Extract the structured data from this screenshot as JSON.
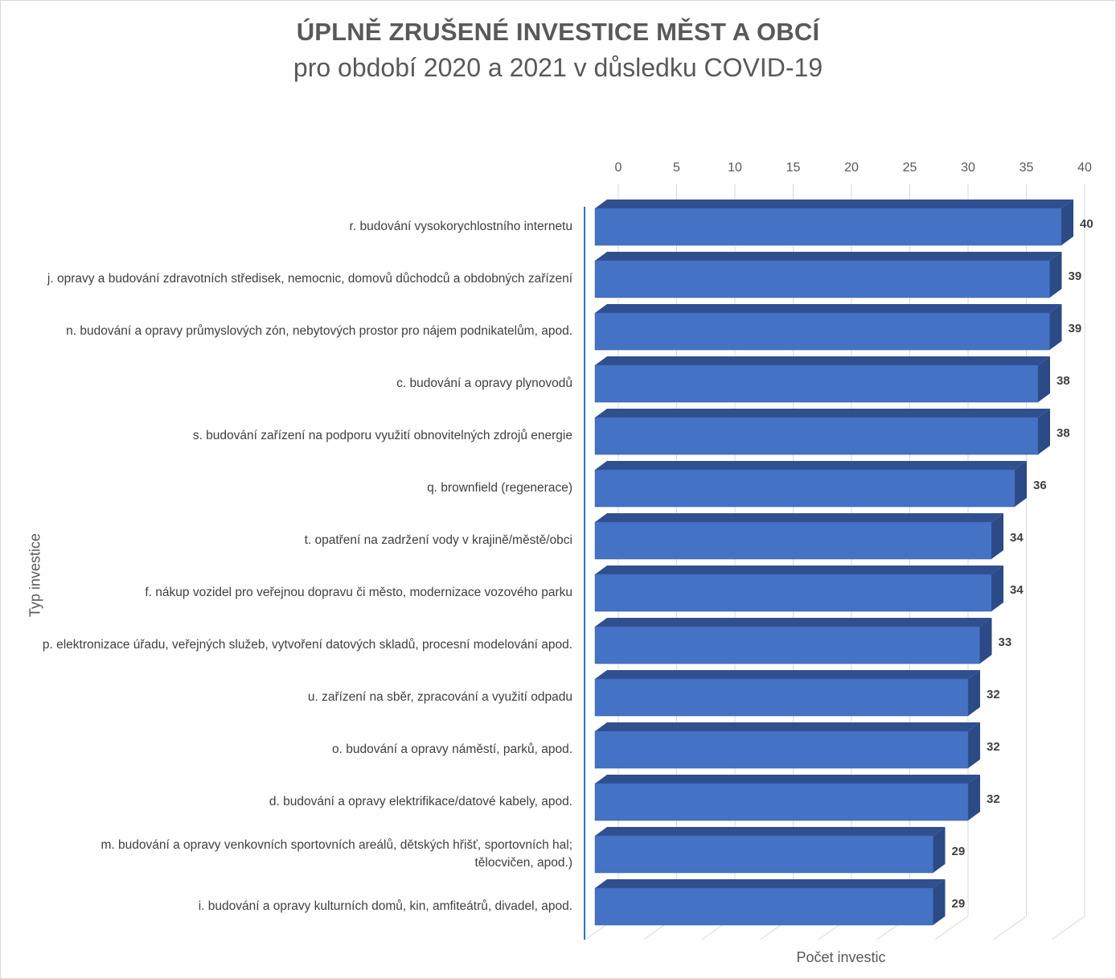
{
  "chart_data": {
    "type": "bar",
    "orientation": "horizontal",
    "style": "3d",
    "title": "ÚPLNĚ ZRUŠENÉ INVESTICE MĚST A OBCÍ",
    "subtitle": "pro období 2020 a 2021 v důsledku COVID-19",
    "xlabel": "Počet investic",
    "ylabel": "Typ investice",
    "xlim": [
      0,
      40
    ],
    "xticks": [
      0,
      5,
      10,
      15,
      20,
      25,
      30,
      35,
      40
    ],
    "grid": true,
    "legend": "none",
    "bar_color": "#4472c4",
    "categories": [
      "r. budování vysokorychlostního internetu",
      "j. opravy a budování zdravotních středisek, nemocnic, domovů důchodců a obdobných zařízení",
      "n. budování a opravy průmyslových zón, nebytových prostor pro nájem podnikatelům, apod.",
      "c. budování a opravy plynovodů",
      "s. budování zařízení na podporu využití obnovitelných zdrojů energie",
      "q. brownfield (regenerace)",
      "t. opatření na zadržení vody v krajině/městě/obci",
      "f. nákup vozidel pro veřejnou dopravu či město, modernizace vozového parku",
      "p. elektronizace úřadu, veřejných služeb, vytvoření datových skladů, procesní modelování apod.",
      "u. zařízení na sběr, zpracování a využití odpadu",
      "o. budování a opravy náměstí, parků, apod.",
      "d. budování a opravy elektrifikace/datové kabely, apod.",
      "m. budování a opravy venkovních sportovních areálů, dětských hřišť, sportovních hal; tělocvičen, apod.)",
      "i. budování a opravy kulturních domů, kin, amfiteátrů, divadel, apod."
    ],
    "values": [
      40,
      39,
      39,
      38,
      38,
      36,
      34,
      34,
      33,
      32,
      32,
      32,
      29,
      29
    ]
  }
}
